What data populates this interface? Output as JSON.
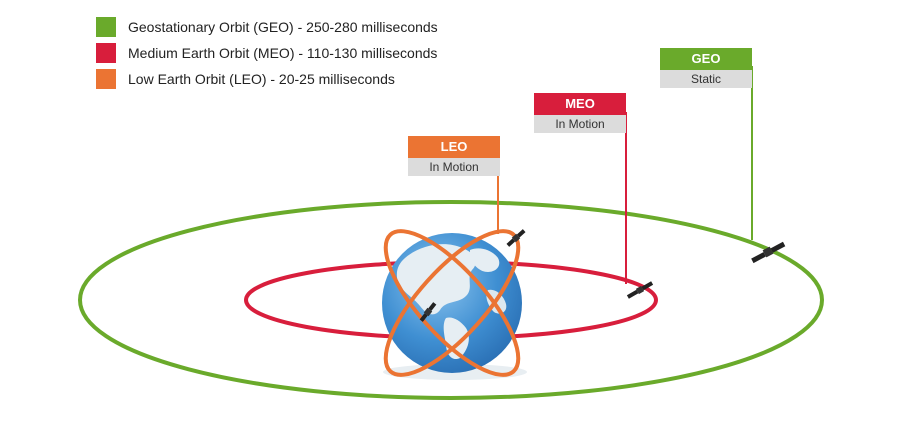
{
  "legend": [
    {
      "label": "Geostationary Orbit (GEO) - 250-280 milliseconds",
      "color": "#6aaa2b"
    },
    {
      "label": "Medium Earth Orbit (MEO) - 110-130 milliseconds",
      "color": "#d81e3c"
    },
    {
      "label": "Low Earth Orbit (LEO) - 20-25 milliseconds",
      "color": "#eb7433"
    }
  ],
  "flags": {
    "leo": {
      "title": "LEO",
      "status": "In Motion",
      "color": "#eb7433"
    },
    "meo": {
      "title": "MEO",
      "status": "In Motion",
      "color": "#d81e3c"
    },
    "geo": {
      "title": "GEO",
      "status": "Static",
      "color": "#6aaa2b"
    }
  },
  "colors": {
    "ocean": "#4a9ad8",
    "land": "#e6eef3",
    "shadow": "#eef3f6"
  }
}
